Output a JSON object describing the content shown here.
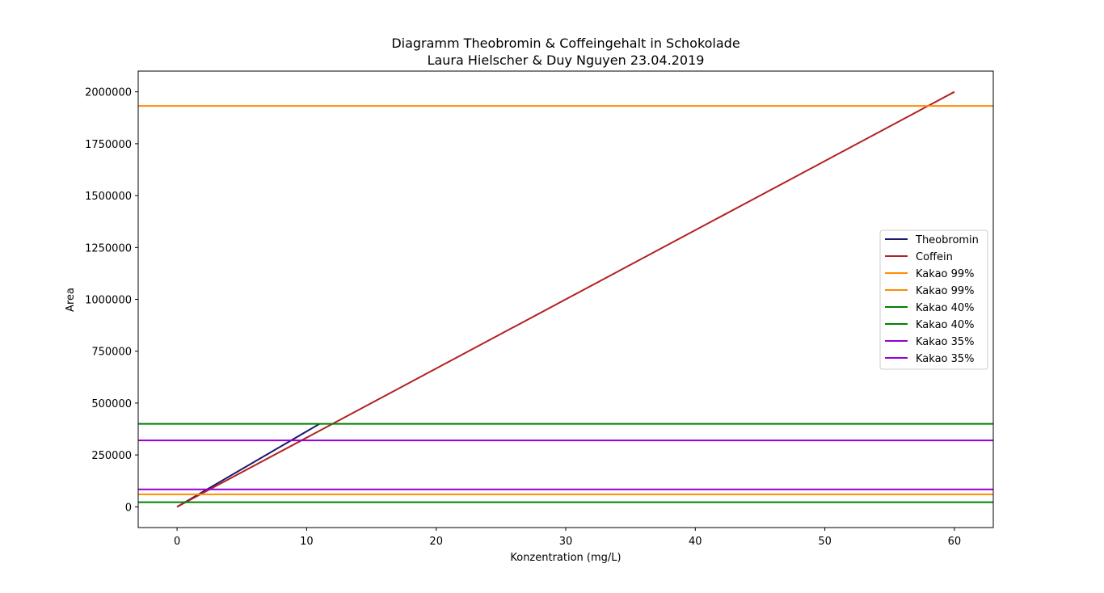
{
  "chart_data": {
    "type": "line",
    "title": "Diagramm Theobromin & Coffeingehalt in Schokolade",
    "subtitle": "Laura Hielscher & Duy Nguyen 23.04.2019",
    "xlabel": "Konzentration (mg/L)",
    "ylabel": "Area",
    "xlim": [
      -3,
      63
    ],
    "ylim": [
      -100000,
      2100000
    ],
    "xticks": [
      0,
      10,
      20,
      30,
      40,
      50,
      60
    ],
    "yticks": [
      0,
      250000,
      500000,
      750000,
      1000000,
      1250000,
      1500000,
      1750000,
      2000000
    ],
    "grid": false,
    "legend_position": "center-right",
    "series": [
      {
        "name": "Theobromin",
        "color": "#191970",
        "kind": "line",
        "x": [
          0,
          11
        ],
        "y": [
          0,
          400000
        ]
      },
      {
        "name": "Coffein",
        "color": "#b22222",
        "kind": "line",
        "x": [
          0,
          60
        ],
        "y": [
          0,
          2000000
        ]
      },
      {
        "name": "Kakao 99%",
        "color": "#ff8c00",
        "kind": "hline",
        "y": 1932000
      },
      {
        "name": "Kakao 99%",
        "color": "#ff8c00",
        "kind": "hline",
        "y": 60000
      },
      {
        "name": "Kakao 40%",
        "color": "#008000",
        "kind": "hline",
        "y": 400000
      },
      {
        "name": "Kakao 40%",
        "color": "#008000",
        "kind": "hline",
        "y": 22000
      },
      {
        "name": "Kakao 35%",
        "color": "#9400d3",
        "kind": "hline",
        "y": 320000
      },
      {
        "name": "Kakao 35%",
        "color": "#9400d3",
        "kind": "hline",
        "y": 84000
      }
    ]
  }
}
